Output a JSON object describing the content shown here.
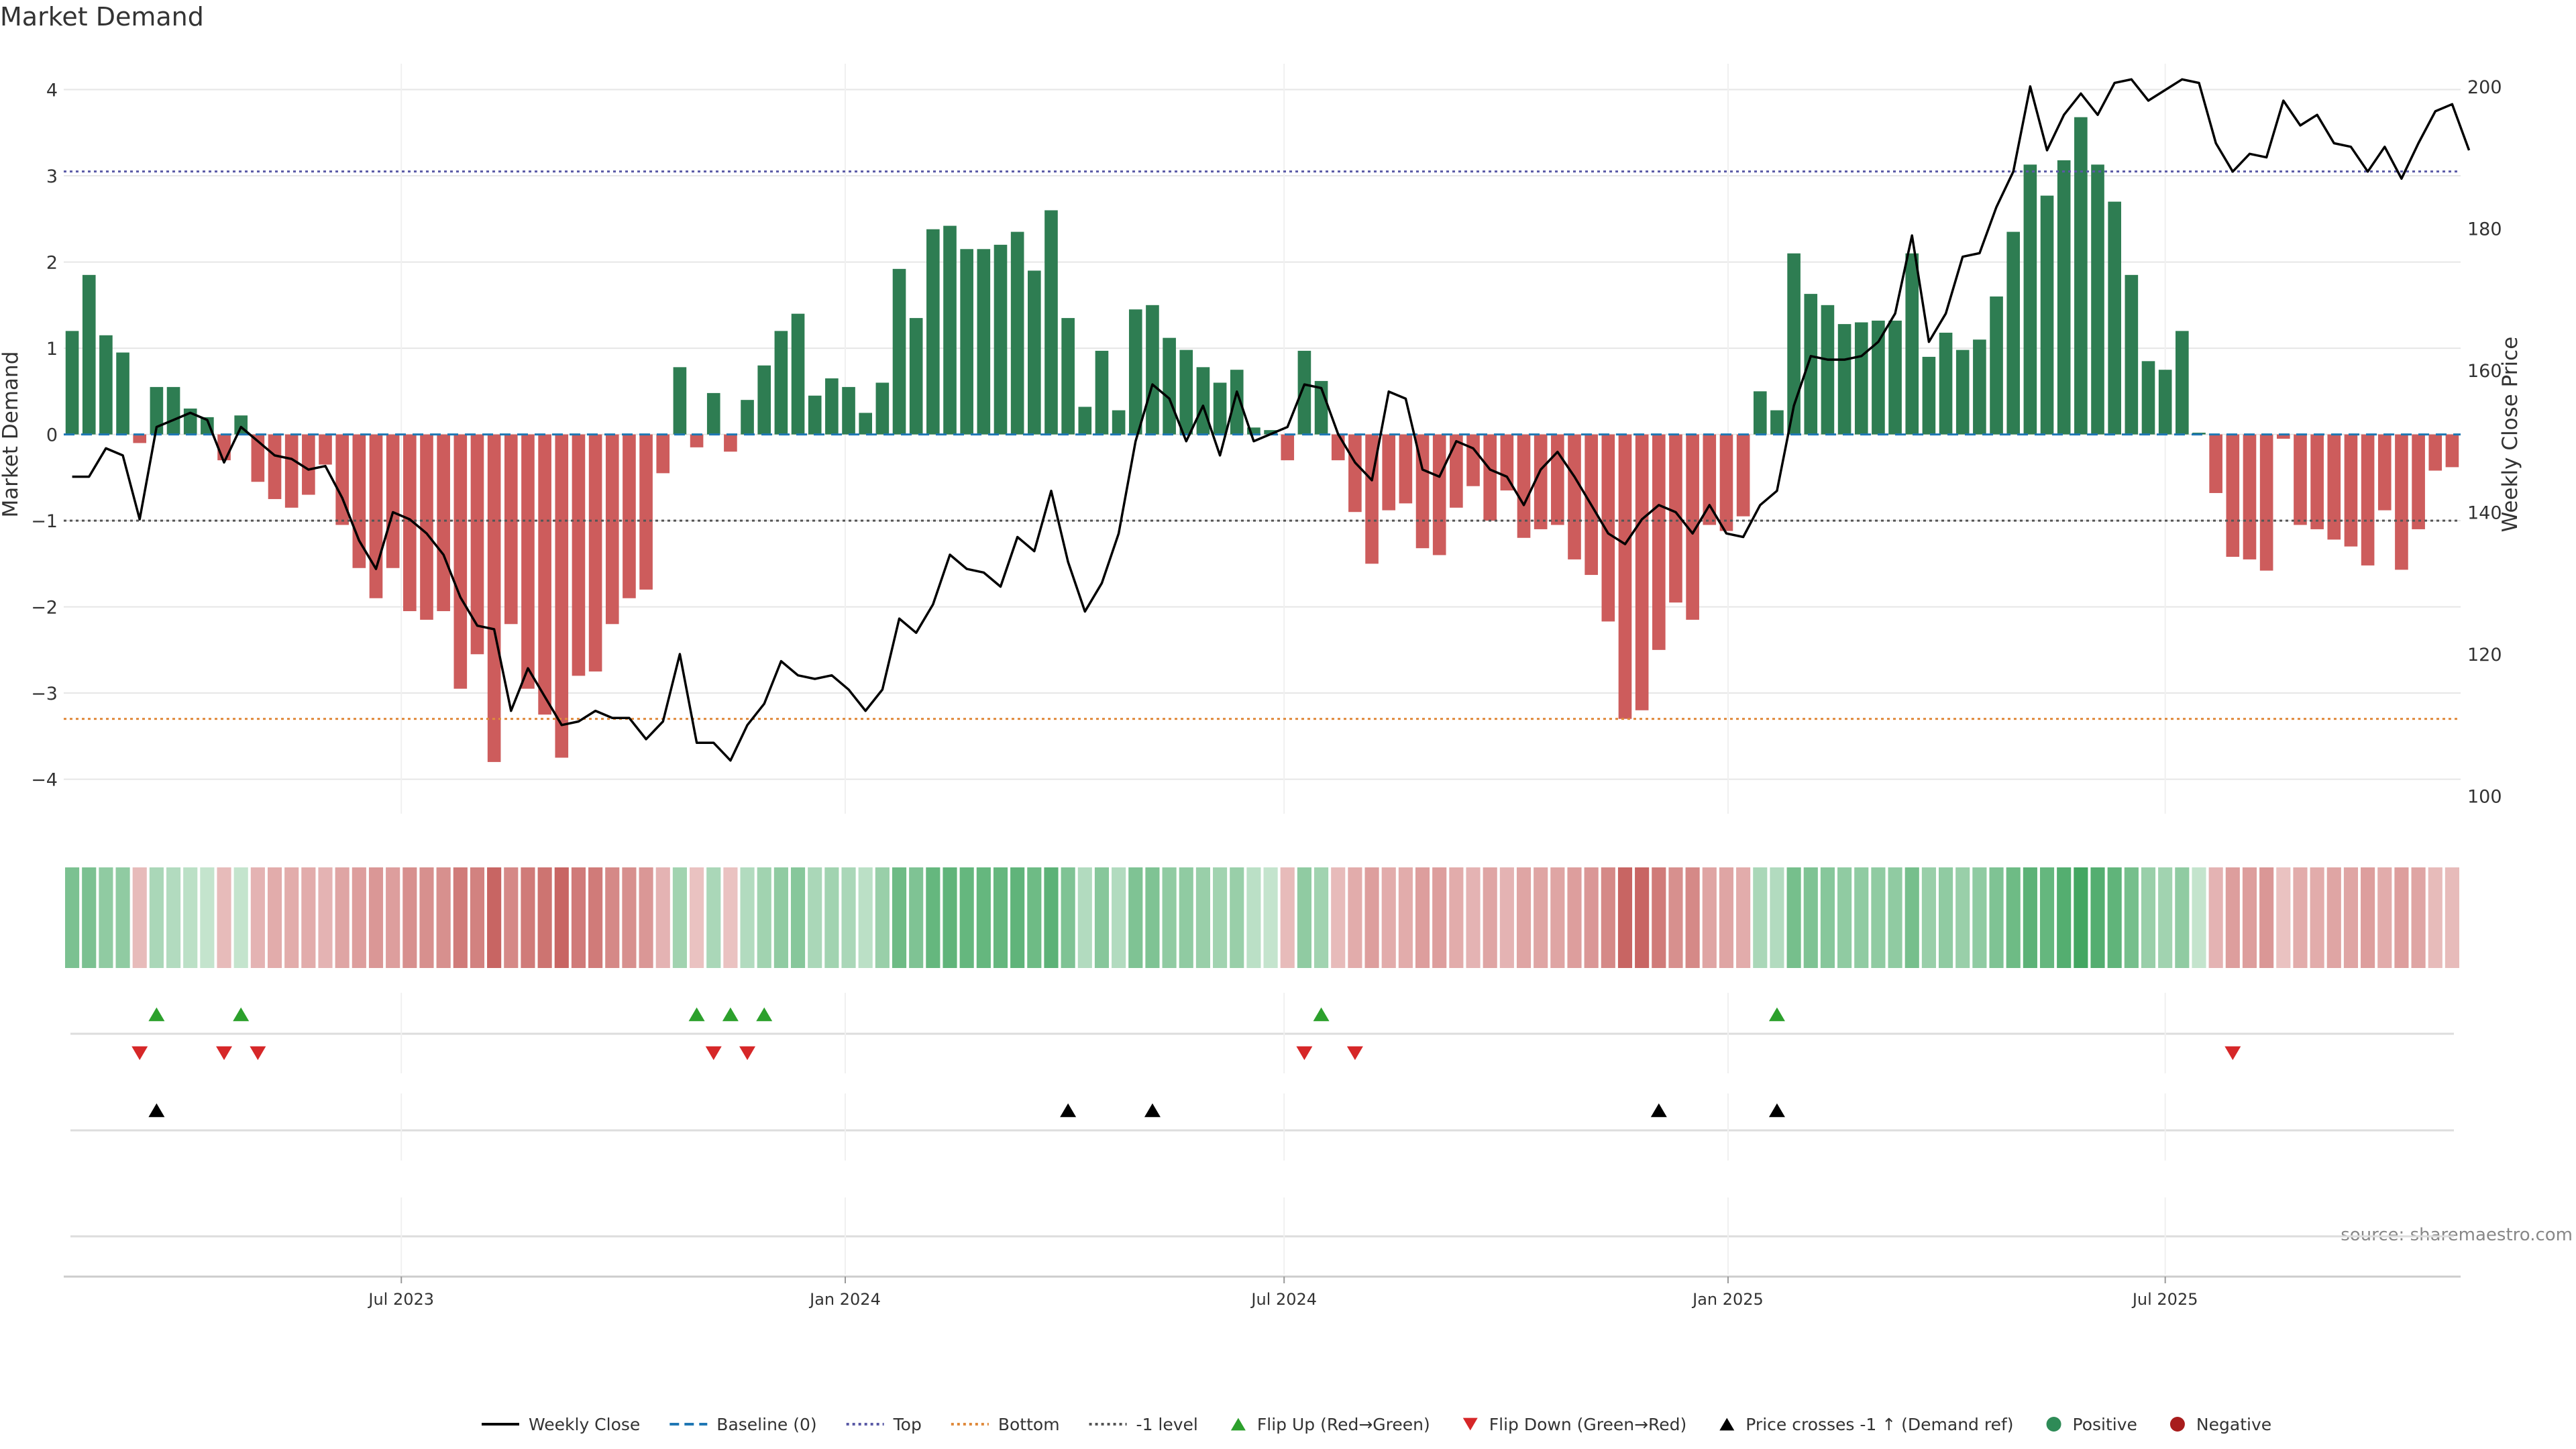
{
  "chart_data": {
    "type": "bar",
    "title": "Market Demand",
    "source": "source: sharemaestro.com",
    "ylabel_left": "Market Demand",
    "ylabel_right": "Weekly Close Price",
    "ylim_left": [
      -4.4,
      4.3
    ],
    "yticks_left": [
      4,
      3,
      2,
      1,
      0,
      -1,
      -2,
      -3,
      -4
    ],
    "ytick_labels_left": [
      "4",
      "3",
      "2",
      "1",
      "0",
      "−1",
      "−2",
      "−3",
      "−4"
    ],
    "ylim_right": [
      97.5,
      203.2
    ],
    "yticks_right": [
      200,
      180,
      160,
      140,
      120,
      100
    ],
    "ytick_labels_right": [
      "200",
      "180",
      "160",
      "140",
      "120",
      "100"
    ],
    "x_ticks": [
      {
        "label": "Jul 2023",
        "week": 20
      },
      {
        "label": "Jan 2024",
        "week": 46.3
      },
      {
        "label": "Jul 2024",
        "week": 72.3
      },
      {
        "label": "Jan 2025",
        "week": 98.6
      },
      {
        "label": "Jul 2025",
        "week": 124.5
      }
    ],
    "reference_lines": {
      "top": 3.05,
      "bottom": -3.3,
      "minus_one": -1,
      "baseline": 0
    },
    "demand": [
      1.2,
      1.85,
      1.15,
      0.95,
      -0.1,
      0.55,
      0.55,
      0.3,
      0.2,
      -0.3,
      0.22,
      -0.55,
      -0.75,
      -0.85,
      -0.7,
      -0.35,
      -1.05,
      -1.55,
      -1.9,
      -1.55,
      -2.05,
      -2.15,
      -2.05,
      -2.95,
      -2.55,
      -3.8,
      -2.2,
      -2.95,
      -3.25,
      -3.75,
      -2.8,
      -2.75,
      -2.2,
      -1.9,
      -1.8,
      -0.45,
      0.78,
      -0.15,
      0.48,
      -0.2,
      0.4,
      0.8,
      1.2,
      1.4,
      0.45,
      0.65,
      0.55,
      0.25,
      0.6,
      1.92,
      1.35,
      2.38,
      2.42,
      2.15,
      2.15,
      2.2,
      2.35,
      1.9,
      2.6,
      1.35,
      0.32,
      0.97,
      0.28,
      1.45,
      1.5,
      1.12,
      0.98,
      0.78,
      0.6,
      0.75,
      0.08,
      0.05,
      -0.3,
      0.97,
      0.62,
      -0.3,
      -0.9,
      -1.5,
      -0.88,
      -0.8,
      -1.32,
      -1.4,
      -0.85,
      -0.6,
      -1.0,
      -0.65,
      -1.2,
      -1.1,
      -1.05,
      -1.45,
      -1.63,
      -2.17,
      -3.3,
      -3.2,
      -2.5,
      -1.95,
      -2.15,
      -1.05,
      -1.12,
      -0.95,
      0.5,
      0.28,
      2.1,
      1.63,
      1.5,
      1.28,
      1.3,
      1.32,
      1.32,
      2.1,
      0.9,
      1.18,
      0.98,
      1.1,
      1.6,
      2.35,
      3.13,
      2.77,
      3.18,
      3.68,
      3.13,
      2.7,
      1.85,
      0.85,
      0.75,
      1.2,
      0.02,
      -0.68,
      -1.42,
      -1.45,
      -1.58,
      -0.05,
      -1.05,
      -1.1,
      -1.22,
      -1.3,
      -1.52,
      -0.88,
      -1.57,
      -1.1,
      -0.42,
      -0.38
    ],
    "weekly_close": [
      145,
      145,
      149,
      148,
      139,
      152,
      153,
      154,
      153,
      147,
      152,
      150,
      148,
      147.5,
      146,
      146.5,
      142,
      136,
      132,
      140,
      139,
      137,
      134,
      128,
      124,
      123.5,
      112,
      118,
      114,
      110,
      110.5,
      112,
      111,
      111,
      108,
      110.5,
      120,
      107.5,
      107.5,
      105,
      110,
      113,
      119,
      117,
      116.5,
      117,
      115,
      112,
      115,
      125,
      123,
      127,
      134,
      132,
      131.5,
      129.5,
      136.5,
      134.5,
      143,
      133,
      126,
      130,
      137,
      150,
      158,
      156,
      150,
      155,
      148,
      157,
      150,
      151,
      152,
      158,
      157.5,
      151,
      147,
      144.5,
      157,
      156,
      146,
      145,
      150,
      149,
      146,
      145,
      141,
      146,
      148.5,
      145,
      141,
      137,
      135.5,
      139,
      141,
      140,
      137,
      141,
      137,
      136.5,
      141,
      143,
      155,
      162,
      161.5,
      161.5,
      162,
      164,
      168,
      179,
      164,
      168,
      176,
      176.5,
      183,
      188,
      200,
      191,
      196,
      199,
      196,
      200.5,
      201,
      198,
      199.5,
      201,
      200.5,
      192,
      188,
      190.5,
      190,
      198,
      194.5,
      196,
      192,
      191.5,
      188,
      191.5,
      187,
      192,
      196.5,
      197.5,
      191
    ],
    "strip_intensity": [
      0.62,
      0.62,
      0.5,
      0.5,
      -0.25,
      0.35,
      0.3,
      0.25,
      0.2,
      -0.25,
      0.2,
      -0.3,
      -0.35,
      -0.35,
      -0.35,
      -0.3,
      -0.4,
      -0.45,
      -0.5,
      -0.45,
      -0.55,
      -0.55,
      -0.55,
      -0.7,
      -0.65,
      -0.85,
      -0.6,
      -0.7,
      -0.75,
      -0.85,
      -0.7,
      -0.7,
      -0.6,
      -0.55,
      -0.5,
      -0.3,
      0.4,
      -0.2,
      0.35,
      -0.2,
      0.3,
      0.4,
      0.5,
      0.55,
      0.35,
      0.4,
      0.35,
      0.25,
      0.45,
      0.7,
      0.6,
      0.75,
      0.78,
      0.75,
      0.75,
      0.75,
      0.78,
      0.7,
      0.8,
      0.6,
      0.3,
      0.55,
      0.3,
      0.6,
      0.6,
      0.5,
      0.5,
      0.45,
      0.4,
      0.45,
      0.25,
      0.2,
      -0.25,
      0.5,
      0.4,
      -0.25,
      -0.35,
      -0.45,
      -0.35,
      -0.35,
      -0.45,
      -0.45,
      -0.35,
      -0.3,
      -0.4,
      -0.3,
      -0.4,
      -0.4,
      -0.4,
      -0.45,
      -0.5,
      -0.6,
      -0.85,
      -0.85,
      -0.7,
      -0.55,
      -0.6,
      -0.4,
      -0.4,
      -0.35,
      0.35,
      0.3,
      0.65,
      0.6,
      0.55,
      0.5,
      0.5,
      0.5,
      0.5,
      0.65,
      0.45,
      0.5,
      0.45,
      0.5,
      0.6,
      0.7,
      0.8,
      0.75,
      0.85,
      0.95,
      0.85,
      0.78,
      0.65,
      0.45,
      0.4,
      0.5,
      0.2,
      -0.3,
      -0.45,
      -0.45,
      -0.5,
      -0.2,
      -0.35,
      -0.35,
      -0.4,
      -0.4,
      -0.45,
      -0.35,
      -0.45,
      -0.4,
      -0.25,
      -0.25
    ],
    "flip_up_weeks": [
      5,
      10,
      37,
      39,
      41,
      74,
      101
    ],
    "flip_down_weeks": [
      4,
      9,
      11,
      38,
      40,
      73,
      76,
      128
    ],
    "price_cross_weeks": [
      5,
      59,
      64,
      94,
      101
    ],
    "legend": [
      {
        "label": "Weekly Close",
        "kind": "line",
        "color": "#000000"
      },
      {
        "label": "Baseline (0)",
        "kind": "dashed",
        "color": "#1f77b4"
      },
      {
        "label": "Top",
        "kind": "dotted",
        "color": "#5a5aa6"
      },
      {
        "label": "Bottom",
        "kind": "dotted",
        "color": "#e08a3c"
      },
      {
        "label": "-1 level",
        "kind": "dotted",
        "color": "#555555"
      },
      {
        "label": "Flip Up (Red→Green)",
        "kind": "tri-up",
        "color": "#2ca02c"
      },
      {
        "label": "Flip Down (Green→Red)",
        "kind": "tri-down",
        "color": "#d62728"
      },
      {
        "label": "Price crosses -1 ↑ (Demand ref)",
        "kind": "tri-up",
        "color": "#000000"
      },
      {
        "label": "Positive",
        "kind": "dot",
        "color": "#2e8b57"
      },
      {
        "label": "Negative",
        "kind": "dot",
        "color": "#a81c1c"
      }
    ],
    "colors": {
      "positive_bar": "#2e7d52",
      "negative_bar": "#cd5c5c",
      "top_line": "#5a5aa6",
      "bottom_line": "#e08a3c",
      "minus_one_line": "#555555",
      "baseline": "#1f77b4",
      "price_line": "#000000",
      "flip_up": "#2ca02c",
      "flip_down": "#d62728",
      "cross": "#000000",
      "grid": "#e6e6e6"
    }
  }
}
